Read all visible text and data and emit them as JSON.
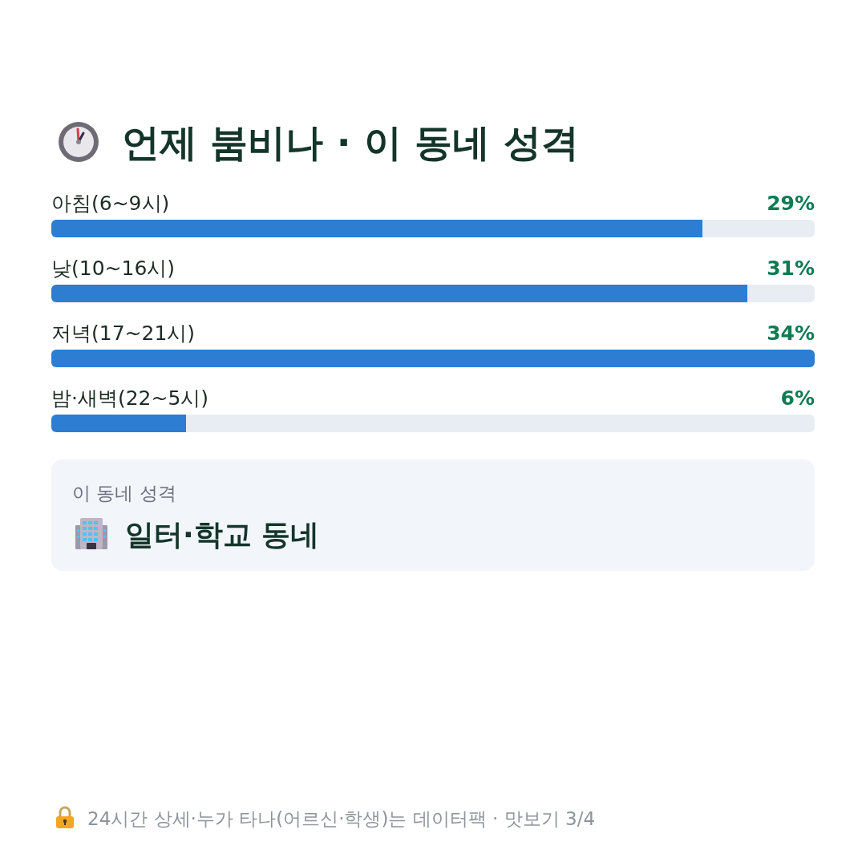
{
  "chart_data": {
    "type": "bar",
    "orientation": "horizontal",
    "title": "언제 붐비나 · 이 동네 성격",
    "categories": [
      "아침(6~9시)",
      "낮(10~16시)",
      "저녁(17~21시)",
      "밤·새벽(22~5시)"
    ],
    "values": [
      29,
      31,
      34,
      6
    ],
    "color": "#2d7dd2",
    "value_labels": [
      "29%",
      "31%",
      "34%",
      "6%"
    ],
    "annotations": [
      "이 동네 성격",
      "일터·학교 동네",
      "24시간 상세·누가 타나(어르신·학생)는 데이터팩 · 맛보기 3/4"
    ]
  }
}
